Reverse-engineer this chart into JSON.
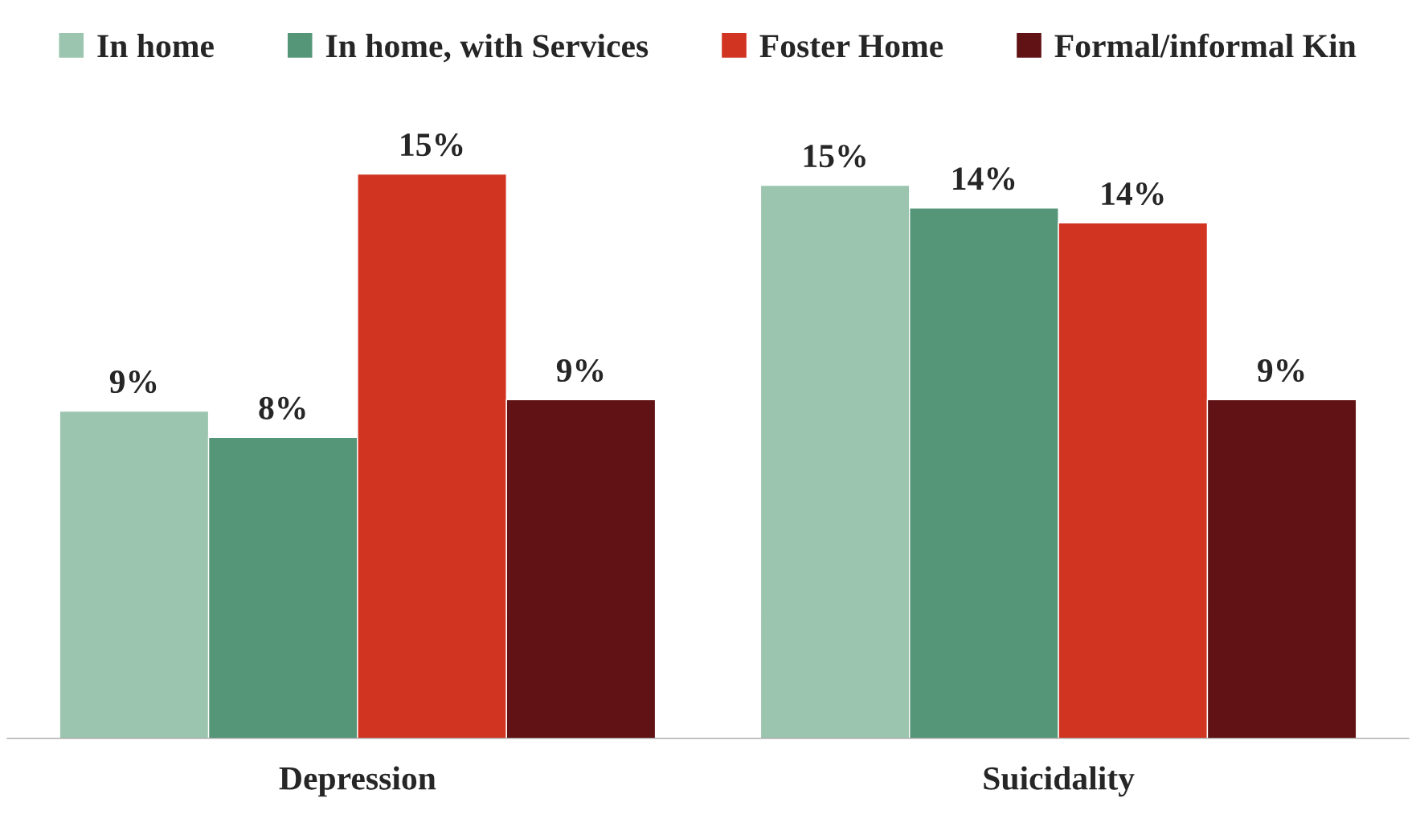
{
  "chart_data": {
    "type": "bar",
    "categories": [
      "Depression",
      "Suicidality"
    ],
    "series": [
      {
        "name": "In home",
        "color": "#9bc5af",
        "values": [
          8.7,
          14.7
        ],
        "value_labels": [
          "9%",
          "15%"
        ]
      },
      {
        "name": "In home, with Services",
        "color": "#559578",
        "values": [
          8.0,
          14.1
        ],
        "value_labels": [
          "8%",
          "14%"
        ]
      },
      {
        "name": "Foster Home",
        "color": "#d13522",
        "values": [
          15.0,
          13.7
        ],
        "value_labels": [
          "15%",
          "14%"
        ]
      },
      {
        "name": "Formal/informal Kin",
        "color": "#601215",
        "values": [
          9.0,
          9.0
        ],
        "value_labels": [
          "9%",
          "9%"
        ]
      }
    ],
    "legend": "top",
    "grid": false
  }
}
